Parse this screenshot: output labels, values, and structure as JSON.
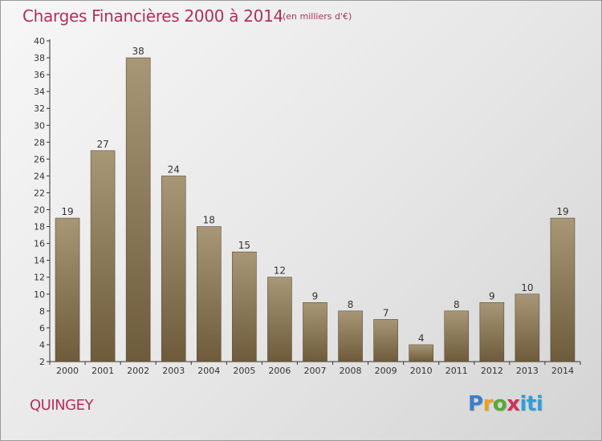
{
  "chart_data": {
    "type": "bar",
    "title": "Charges Financières 2000 à 2014",
    "subtitle": "(en milliers d'€)",
    "categories": [
      "2000",
      "2001",
      "2002",
      "2003",
      "2004",
      "2005",
      "2006",
      "2007",
      "2008",
      "2009",
      "2010",
      "2011",
      "2012",
      "2013",
      "2014"
    ],
    "values": [
      19,
      27,
      38,
      24,
      18,
      15,
      12,
      9,
      8,
      7,
      4,
      8,
      9,
      10,
      19
    ],
    "ylim": [
      2,
      40
    ],
    "yticks": [
      2,
      4,
      6,
      8,
      10,
      12,
      14,
      16,
      18,
      20,
      22,
      24,
      26,
      28,
      30,
      32,
      34,
      36,
      38,
      40
    ],
    "grid": false,
    "legend": "none",
    "colors": {
      "bar_top": "#a89776",
      "bar_bottom": "#6d5b3c",
      "title": "#b0305a"
    }
  },
  "commune": "QUINGEY",
  "logo": {
    "text": "Proxiti",
    "parts": [
      "P",
      "r",
      "o",
      "x",
      "iti"
    ]
  }
}
